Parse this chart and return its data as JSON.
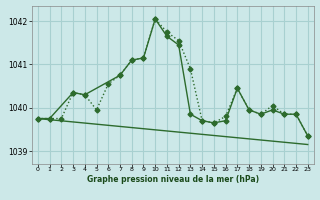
{
  "title": "Graphe pression niveau de la mer (hPa)",
  "background_color": "#cce8e8",
  "grid_color": "#a8d0d0",
  "line_color": "#2d6b2d",
  "xlim": [
    -0.5,
    23.5
  ],
  "ylim": [
    1038.7,
    1042.35
  ],
  "xticks": [
    0,
    1,
    2,
    3,
    4,
    5,
    6,
    7,
    8,
    9,
    10,
    11,
    12,
    13,
    14,
    15,
    16,
    17,
    18,
    19,
    20,
    21,
    22,
    23
  ],
  "yticks": [
    1039,
    1040,
    1041,
    1042
  ],
  "series": [
    {
      "x": [
        0,
        1,
        2,
        3,
        4,
        5,
        6,
        7,
        8,
        9,
        10,
        11,
        12,
        13,
        14,
        15,
        16,
        17,
        18,
        19,
        20,
        21,
        22,
        23
      ],
      "y": [
        1039.75,
        1039.75,
        1039.75,
        1040.35,
        1040.3,
        1039.95,
        1040.55,
        1040.75,
        1041.1,
        1041.15,
        1042.05,
        1041.75,
        1041.55,
        1040.9,
        1039.7,
        1039.65,
        1039.8,
        1040.45,
        1039.95,
        1039.85,
        1040.05,
        1039.85,
        1039.85,
        1039.35
      ],
      "style": "dotted",
      "marker": "D",
      "markersize": 2.5,
      "linewidth": 1.0
    },
    {
      "x": [
        0,
        1,
        3,
        4,
        7,
        8,
        9,
        10,
        11,
        12,
        13,
        14,
        15,
        16,
        17,
        18,
        19,
        20,
        21,
        22,
        23
      ],
      "y": [
        1039.75,
        1039.75,
        1040.35,
        1040.3,
        1040.75,
        1041.1,
        1041.15,
        1042.05,
        1041.65,
        1041.45,
        1039.85,
        1039.7,
        1039.65,
        1039.7,
        1040.45,
        1039.95,
        1039.85,
        1039.95,
        1039.85,
        1039.85,
        1039.35
      ],
      "style": "solid",
      "marker": "D",
      "markersize": 2.5,
      "linewidth": 1.0
    },
    {
      "x": [
        0,
        23
      ],
      "y": [
        1039.75,
        1039.15
      ],
      "style": "solid",
      "marker": null,
      "markersize": 0,
      "linewidth": 1.0
    }
  ]
}
